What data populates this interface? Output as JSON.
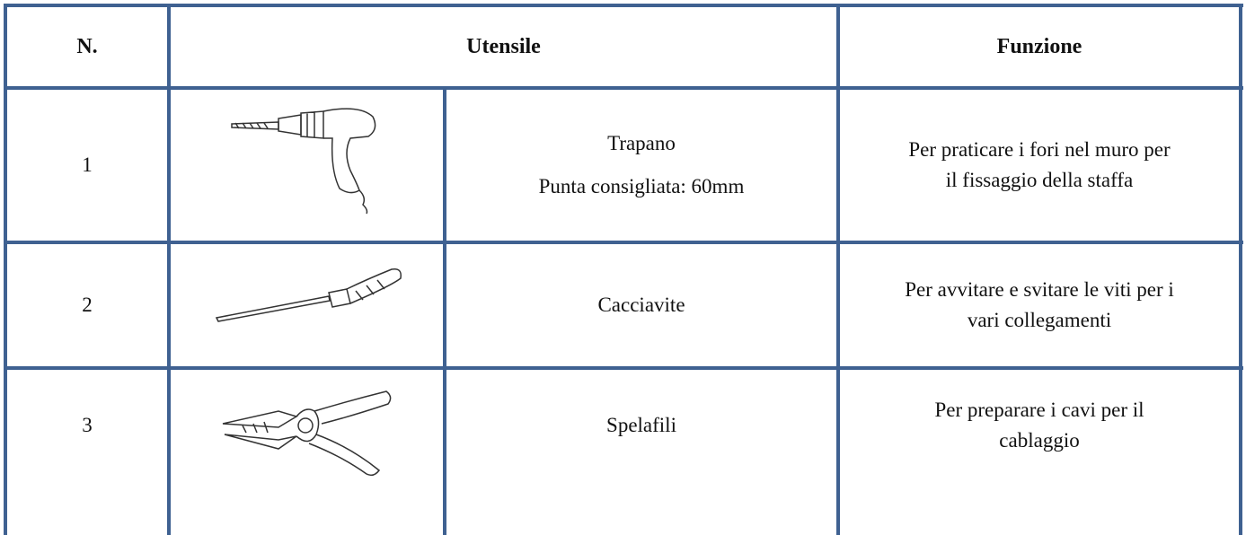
{
  "header": {
    "number": "N.",
    "tool": "Utensile",
    "function": "Funzione"
  },
  "rows": [
    {
      "number": "1",
      "tool": [
        "Trapano",
        "Punta consigliata: 60mm"
      ],
      "function": [
        "Per praticare i fori nel muro per",
        "il fissaggio della staffa"
      ]
    },
    {
      "number": "2",
      "tool": [
        "Cacciavite"
      ],
      "function": [
        "Per avvitare e svitare le viti per i",
        "vari collegamenti"
      ]
    },
    {
      "number": "3",
      "tool": [
        "Spelafili"
      ],
      "function": [
        "Per preparare i cavi per il",
        "cablaggio"
      ]
    }
  ]
}
